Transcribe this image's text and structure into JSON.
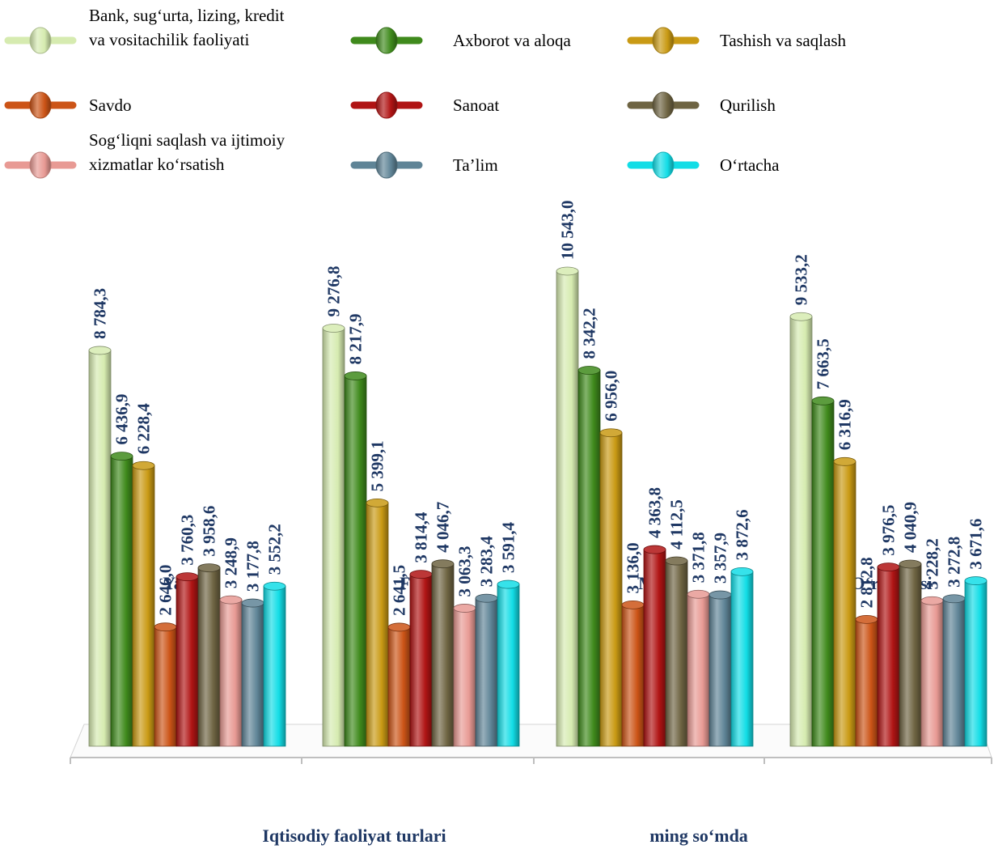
{
  "chart_data": {
    "type": "bar",
    "categories": [
      "Yanvar",
      "Fevral",
      "Mart",
      "O‘rtachasi"
    ],
    "series": [
      {
        "name": "Bank, sug‘urta, lizing, kredit va vositachilik faoliyati",
        "legend_lines": [
          "Bank, sug‘urta, lizing, kredit",
          "va vositachilik faoliyati"
        ],
        "color": "#d6ebb0",
        "values": [
          8784.3,
          9276.8,
          10543.0,
          9533.2
        ],
        "labels": [
          "8 784,3",
          "9 276,8",
          "10 543,0",
          "9 533,2"
        ]
      },
      {
        "name": "Axborot va aloqa",
        "legend_lines": [
          "Axborot va aloqa"
        ],
        "color": "#3f8a1c",
        "values": [
          6436.9,
          8217.9,
          8342.2,
          7663.5
        ],
        "labels": [
          "6 436,9",
          "8 217,9",
          "8 342,2",
          "7 663,5"
        ]
      },
      {
        "name": "Tashish va saqlash",
        "legend_lines": [
          "Tashish va saqlash"
        ],
        "color": "#c99a14",
        "values": [
          6228.4,
          5399.1,
          6956.0,
          6316.9
        ],
        "labels": [
          "6 228,4",
          "5 399,1",
          "6 956,0",
          "6 316,9"
        ]
      },
      {
        "name": "Savdo",
        "legend_lines": [
          "Savdo"
        ],
        "color": "#cc5417",
        "values": [
          2646.0,
          2641.5,
          3136.0,
          2812.8
        ],
        "labels": [
          "2 646,0",
          "2 641,5",
          "3 136,0",
          "2 812,8"
        ]
      },
      {
        "name": "Sanoat",
        "legend_lines": [
          "Sanoat"
        ],
        "color": "#b01414",
        "values": [
          3760.3,
          3814.4,
          4363.8,
          3976.5
        ],
        "labels": [
          "3 760,3",
          "3 814,4",
          "4 363,8",
          "3 976,5"
        ]
      },
      {
        "name": "Qurilish",
        "legend_lines": [
          "Qurilish"
        ],
        "color": "#6e6442",
        "values": [
          3958.6,
          4046.7,
          4112.5,
          4040.9
        ],
        "labels": [
          "3 958,6",
          "4 046,7",
          "4 112,5",
          "4 040,9"
        ]
      },
      {
        "name": "Sog‘liqni saqlash va ijtimoiy xizmatlar ko‘rsatish",
        "legend_lines": [
          "Sog‘liqni saqlash va ijtimoiy",
          "xizmatlar ko‘rsatish"
        ],
        "color": "#e89a94",
        "values": [
          3248.9,
          3063.3,
          3371.8,
          3228.2
        ],
        "labels": [
          "3 248,9",
          "3 063,3",
          "3 371,8",
          "3 228,2"
        ]
      },
      {
        "name": "Ta’lim",
        "legend_lines": [
          "Ta’lim"
        ],
        "color": "#5f8496",
        "values": [
          3177.8,
          3283.4,
          3357.9,
          3272.8
        ],
        "labels": [
          "3 177,8",
          "3 283,4",
          "3 357,9",
          "3 272,8"
        ]
      },
      {
        "name": "O‘rtacha",
        "legend_lines": [
          "O‘rtacha"
        ],
        "color": "#12dde6",
        "values": [
          3552.2,
          3591.4,
          3872.6,
          3671.6
        ],
        "labels": [
          "3 552,2",
          "3 591,4",
          "3 872,6",
          "3 671,6"
        ]
      }
    ],
    "legend_order": [
      0,
      3,
      6,
      1,
      4,
      7,
      2,
      5,
      8
    ],
    "legend_placement": "top",
    "xlabel": "Iqtisodiy faoliyat turlari",
    "unit_note": "ming so‘mda",
    "ylim": [
      0,
      10543
    ],
    "grid": false
  }
}
